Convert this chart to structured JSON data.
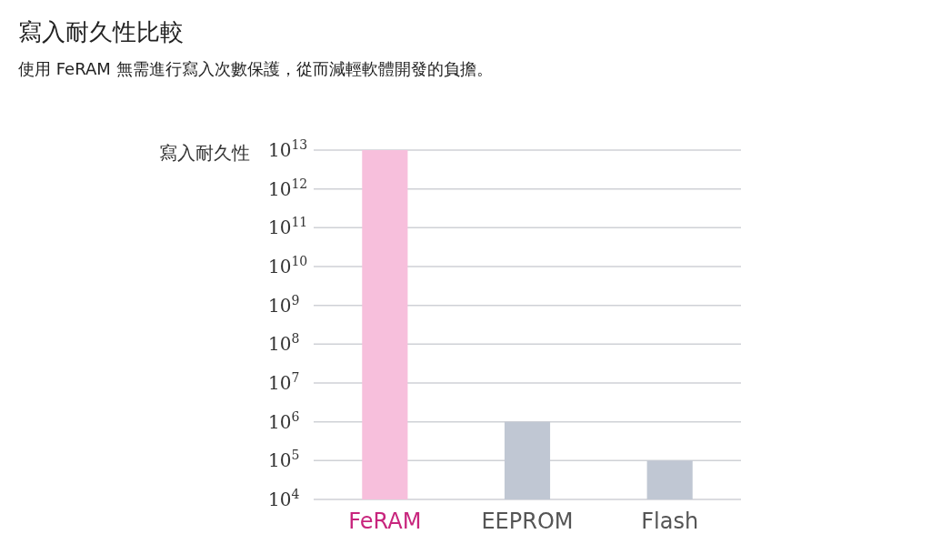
{
  "chart_data": {
    "type": "bar",
    "title": "寫入耐久性比較",
    "subtitle": "使用 FeRAM 無需進行寫入次數保護，從而減輕軟體開發的負擔。",
    "ylabel": "寫入耐久性",
    "categories": [
      "FeRAM",
      "EEPROM",
      "Flash"
    ],
    "values": [
      10000000000000.0,
      1000000.0,
      100000.0
    ],
    "colors": [
      "#f7bfdc",
      "#c0c7d3",
      "#c0c7d3"
    ],
    "log": true,
    "ylim": [
      10000.0,
      10000000000000.0
    ],
    "yticks": [
      {
        "value": 10000.0,
        "label": "10$^{4}$"
      },
      {
        "value": 100000.0,
        "label": "10$^{5}$"
      },
      {
        "value": 1000000.0,
        "label": "10$^{6}$"
      },
      {
        "value": 10000000.0,
        "label": "10$^{7}$"
      },
      {
        "value": 100000000.0,
        "label": "10$^{8}$"
      },
      {
        "value": 1000000000.0,
        "label": "10$^{9}$"
      },
      {
        "value": 10000000000.0,
        "label": "10$^{10}$"
      },
      {
        "value": 100000000000.0,
        "label": "10$^{11}$"
      },
      {
        "value": 1000000000000.0,
        "label": "10$^{12}$"
      },
      {
        "value": 10000000000000.0,
        "label": "10$^{13}$"
      }
    ],
    "grid": "y"
  }
}
